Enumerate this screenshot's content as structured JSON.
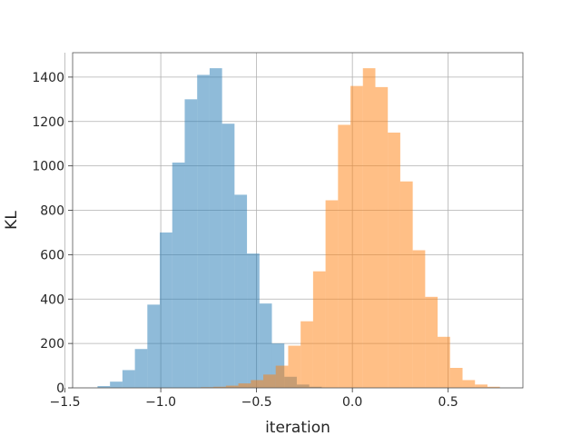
{
  "chart_data": {
    "type": "bar",
    "subtype": "histogram",
    "title": "",
    "xlabel": "iteration",
    "ylabel": "KL",
    "xlim": [
      -1.46,
      0.89
    ],
    "ylim": [
      0,
      1510
    ],
    "grid": true,
    "legend": "none",
    "x_ticks": [
      -1.5,
      -1.0,
      -0.5,
      0.0,
      0.5
    ],
    "x_tick_labels": [
      "−1.5",
      "−1.0",
      "−0.5",
      "0.0",
      "0.5"
    ],
    "y_ticks": [
      0,
      200,
      400,
      600,
      800,
      1000,
      1200,
      1400
    ],
    "y_tick_labels": [
      "0",
      "200",
      "400",
      "600",
      "800",
      "1000",
      "1200",
      "1400"
    ],
    "series": [
      {
        "color": "#1f77b4",
        "opacity": 0.5,
        "bin_edges": [
          -1.33,
          -1.265,
          -1.2,
          -1.135,
          -1.07,
          -1.005,
          -0.94,
          -0.875,
          -0.81,
          -0.745,
          -0.68,
          -0.615,
          -0.55,
          -0.485,
          -0.42,
          -0.355,
          -0.29,
          -0.225,
          -0.16
        ],
        "counts": [
          8,
          28,
          80,
          175,
          375,
          700,
          1015,
          1300,
          1410,
          1440,
          1190,
          870,
          605,
          380,
          200,
          50,
          15,
          5
        ]
      },
      {
        "color": "#ff7f0e",
        "opacity": 0.5,
        "bin_edges": [
          -0.79,
          -0.725,
          -0.66,
          -0.595,
          -0.53,
          -0.465,
          -0.4,
          -0.335,
          -0.27,
          -0.205,
          -0.14,
          -0.075,
          -0.01,
          0.055,
          0.12,
          0.185,
          0.25,
          0.315,
          0.38,
          0.445,
          0.51,
          0.575,
          0.64,
          0.705,
          0.77
        ],
        "counts": [
          3,
          5,
          10,
          20,
          35,
          60,
          100,
          190,
          300,
          525,
          845,
          1185,
          1360,
          1440,
          1355,
          1150,
          930,
          620,
          410,
          230,
          90,
          35,
          15,
          5
        ]
      }
    ]
  }
}
